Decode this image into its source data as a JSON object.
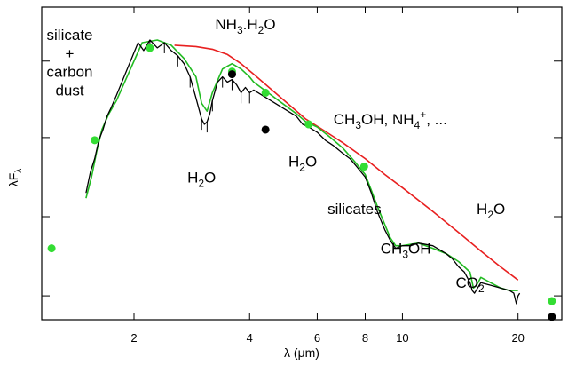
{
  "chart_data": {
    "type": "line",
    "xlabel": "λ (μm)",
    "ylabel": "λF_λ",
    "x_scale": "log",
    "xlim": [
      1.15,
      26
    ],
    "ylim": [
      0,
      1
    ],
    "x_ticks": [
      2,
      4,
      6,
      8,
      10,
      20
    ],
    "y_ticks_unlabeled": [
      0.03,
      0.33,
      0.63,
      0.92
    ],
    "grid": false,
    "legend": "none",
    "colors": {
      "observed": "#000000",
      "model": "#22bb22",
      "continuum": "#e82020",
      "photometry_green": "#33dd33",
      "photometry_black": "#000000"
    },
    "series": [
      {
        "key": "continuum",
        "x": [
          2.55,
          2.9,
          3.2,
          3.5,
          3.8,
          4.1,
          5.6,
          6.2,
          7.0,
          8.0,
          9.0,
          10.0,
          12.0,
          14.0,
          16.0,
          18.0,
          20.0
        ],
        "y": [
          0.98,
          0.975,
          0.965,
          0.945,
          0.91,
          0.87,
          0.7,
          0.66,
          0.61,
          0.55,
          0.49,
          0.44,
          0.35,
          0.27,
          0.2,
          0.14,
          0.09
        ]
      },
      {
        "key": "model",
        "x": [
          1.5,
          1.55,
          1.6,
          1.65,
          1.72,
          1.8,
          2.1,
          2.3,
          2.5,
          2.7,
          2.9,
          3.0,
          3.1,
          3.2,
          3.4,
          3.6,
          3.8,
          4.0,
          4.1,
          5.3,
          5.6,
          6.0,
          6.5,
          7.0,
          7.5,
          8.0,
          8.3,
          8.6,
          9.0,
          9.3,
          9.6,
          10.0,
          11.0,
          12.0,
          13.0,
          14.0,
          15.0,
          15.3,
          15.6,
          16.0,
          18.0,
          19.0,
          20.0
        ],
        "y": [
          0.4,
          0.48,
          0.58,
          0.66,
          0.72,
          0.77,
          0.99,
          1.0,
          0.98,
          0.93,
          0.86,
          0.76,
          0.73,
          0.8,
          0.89,
          0.91,
          0.89,
          0.86,
          0.84,
          0.72,
          0.69,
          0.67,
          0.63,
          0.59,
          0.54,
          0.49,
          0.43,
          0.37,
          0.3,
          0.25,
          0.22,
          0.22,
          0.23,
          0.21,
          0.19,
          0.16,
          0.12,
          0.06,
          0.07,
          0.1,
          0.06,
          0.05,
          0.05
        ]
      },
      {
        "key": "observed",
        "x": [
          1.5,
          1.54,
          1.58,
          1.62,
          1.66,
          1.7,
          1.74,
          1.8,
          2.05,
          2.12,
          2.2,
          2.3,
          2.4,
          2.5,
          2.6,
          2.7,
          2.8,
          2.9,
          3.0,
          3.05,
          3.1,
          3.15,
          3.2,
          3.3,
          3.4,
          3.5,
          3.6,
          3.7,
          3.8,
          3.9,
          4.0,
          4.1,
          5.3,
          5.5,
          5.7,
          6.0,
          6.3,
          6.6,
          7.0,
          7.3,
          7.6,
          8.0,
          8.3,
          8.6,
          9.0,
          9.3,
          9.6,
          10.0,
          10.5,
          11.0,
          12.0,
          13.0,
          13.5,
          14.0,
          14.5,
          15.0,
          15.2,
          15.4,
          15.7,
          16.0,
          17.0,
          18.0,
          19.0,
          19.5,
          19.8,
          20.0,
          20.2
        ],
        "y": [
          0.42,
          0.5,
          0.55,
          0.62,
          0.66,
          0.71,
          0.74,
          0.79,
          0.99,
          0.96,
          1.0,
          0.97,
          0.99,
          0.96,
          0.94,
          0.91,
          0.86,
          0.78,
          0.7,
          0.68,
          0.69,
          0.72,
          0.77,
          0.84,
          0.86,
          0.84,
          0.85,
          0.83,
          0.8,
          0.82,
          0.8,
          0.81,
          0.71,
          0.68,
          0.67,
          0.65,
          0.62,
          0.6,
          0.57,
          0.55,
          0.52,
          0.48,
          0.42,
          0.35,
          0.28,
          0.24,
          0.21,
          0.22,
          0.22,
          0.23,
          0.22,
          0.19,
          0.17,
          0.14,
          0.12,
          0.08,
          0.05,
          0.04,
          0.06,
          0.08,
          0.07,
          0.06,
          0.05,
          0.04,
          0.0,
          0.03,
          0.04
        ]
      }
    ],
    "points_green": {
      "x": [
        1.22,
        1.58,
        2.2,
        3.6,
        4.4,
        5.7,
        7.95,
        24.5
      ],
      "y": [
        0.21,
        0.62,
        0.97,
        0.88,
        0.8,
        0.68,
        0.52,
        0.01
      ]
    },
    "points_black": {
      "x": [
        3.6,
        4.4,
        24.5
      ],
      "y": [
        0.87,
        0.66,
        -0.05
      ]
    },
    "annotations": [
      {
        "key": "silicate",
        "text": "silicate",
        "x": 1.36,
        "y": 1.0
      },
      {
        "key": "plus",
        "text": "+",
        "x": 1.36,
        "y": 0.93
      },
      {
        "key": "carbon",
        "text": "carbon",
        "x": 1.36,
        "y": 0.86
      },
      {
        "key": "dust",
        "text": "dust",
        "x": 1.36,
        "y": 0.79
      },
      {
        "key": "nh3h2o",
        "base": "NH",
        "s1": "3",
        "mid": ".H",
        "s2": "2",
        "end": "O",
        "x": 3.9,
        "y": 1.04
      },
      {
        "key": "h2o_1",
        "base": "H",
        "s1": "2",
        "end": "O",
        "x": 3.0,
        "y": 0.46
      },
      {
        "key": "h2o_2",
        "base": "H",
        "s1": "2",
        "end": "O",
        "x": 5.5,
        "y": 0.52
      },
      {
        "key": "ch3oh_nh4",
        "base": "CH",
        "s1": "3",
        "mid": "OH, NH",
        "sup": "4",
        "supsign": "+",
        "end": ", ...",
        "x": 9.3,
        "y": 0.68
      },
      {
        "key": "silicates",
        "text": "silicates",
        "x": 7.5,
        "y": 0.34
      },
      {
        "key": "h2o_3",
        "base": "H",
        "s1": "2",
        "end": "O",
        "x": 17.0,
        "y": 0.34
      },
      {
        "key": "ch3oh",
        "base": "CH",
        "s1": "3",
        "end": "OH",
        "x": 10.2,
        "y": 0.19
      },
      {
        "key": "co2",
        "base": "CO",
        "s1": "2",
        "x": 15.0,
        "y": 0.06
      }
    ]
  }
}
